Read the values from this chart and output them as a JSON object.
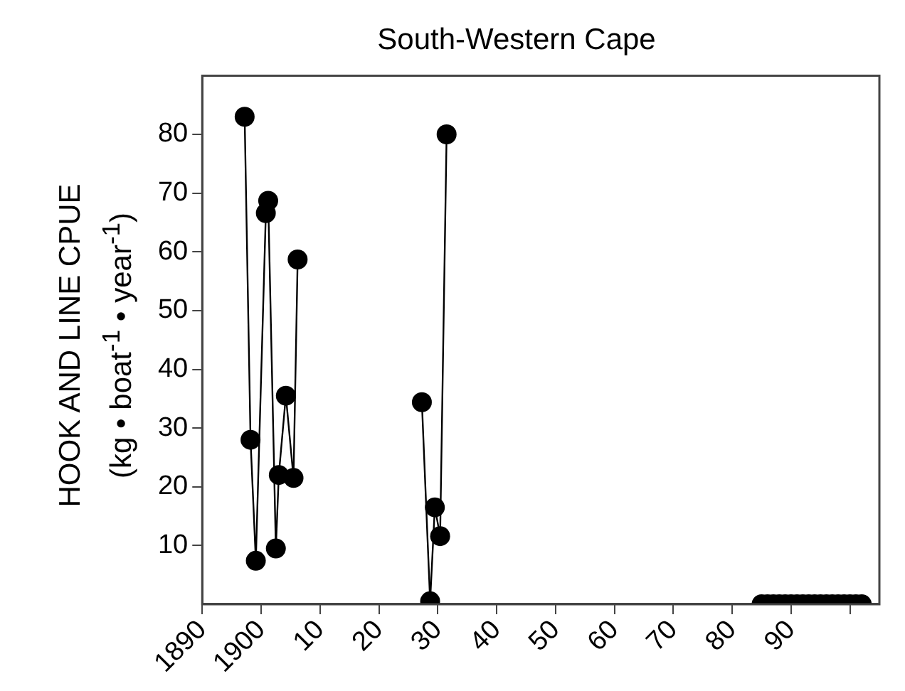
{
  "chart_data": {
    "type": "line",
    "title": "South-Western Cape",
    "ylabel": "HOOK AND LINE CPUE\n(kg • boat$^{-1}$ • year$^{-1}$)",
    "x": [
      1897.2,
      1898.2,
      1899.1,
      1900.8,
      1901.2,
      1902.5,
      1903,
      1904.2,
      1905.5,
      1906.2,
      1916,
      1927.3,
      1928.7,
      1929.5,
      1930.4,
      1931.5,
      1960,
      1985,
      1986,
      1987,
      1988,
      1989,
      1990,
      1991,
      1992,
      1993,
      1994,
      1995,
      1996,
      1997,
      1998,
      1999,
      2000,
      2001,
      2002
    ],
    "series": [
      {
        "color": "#000000",
        "values": [
          83,
          28,
          7.4,
          66.6,
          68.7,
          9.5,
          22,
          35.5,
          21.5,
          58.7,
          null,
          34.4,
          0.5,
          16.5,
          11.6,
          80,
          null,
          0,
          0,
          0,
          0,
          0,
          0,
          0,
          0,
          0,
          0,
          0,
          0,
          0,
          0,
          0,
          0,
          0,
          0
        ]
      }
    ],
    "xlim": [
      1890,
      2005
    ],
    "xticks": [
      1890,
      1900,
      {
        "value": 1910,
        "label": "10"
      },
      {
        "value": 1920,
        "label": "20"
      },
      {
        "value": 1930,
        "label": "30"
      },
      {
        "value": 1940,
        "label": "40"
      },
      {
        "value": 1950,
        "label": "50"
      },
      {
        "value": 1960,
        "label": "60"
      },
      {
        "value": 1970,
        "label": "70"
      },
      {
        "value": 1980,
        "label": "80"
      },
      {
        "value": 1990,
        "label": "90"
      },
      {
        "value": 2000,
        "label": null
      }
    ],
    "ylim": [
      0,
      90
    ],
    "yticks": [
      10,
      20,
      30,
      40,
      50,
      60,
      70,
      80
    ],
    "marker": "circle",
    "line_style": "solid",
    "grid": false,
    "legend": false
  }
}
